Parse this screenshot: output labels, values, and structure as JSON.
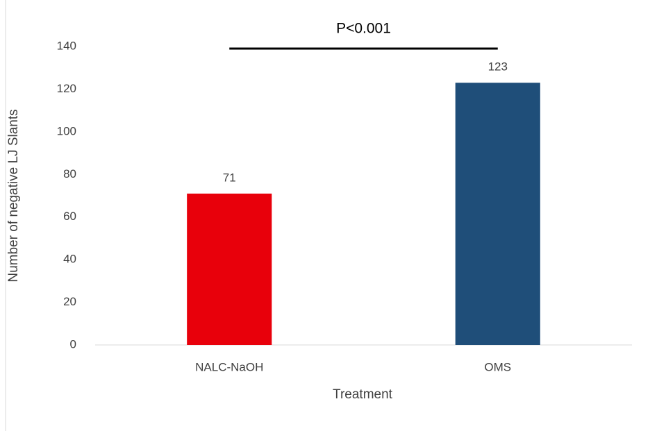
{
  "chart_data": {
    "type": "bar",
    "y_label": "Number of negative LJ Slants",
    "x_label": "Treatment",
    "annotation": "P<0.001",
    "categories": [
      "NALC-NaOH",
      "OMS"
    ],
    "values": [
      71,
      123
    ],
    "colors": [
      "#e8000b",
      "#1f4e79"
    ],
    "ylim": [
      0,
      140
    ],
    "yticks": [
      0,
      20,
      40,
      60,
      80,
      100,
      120,
      140
    ],
    "grid": false
  }
}
